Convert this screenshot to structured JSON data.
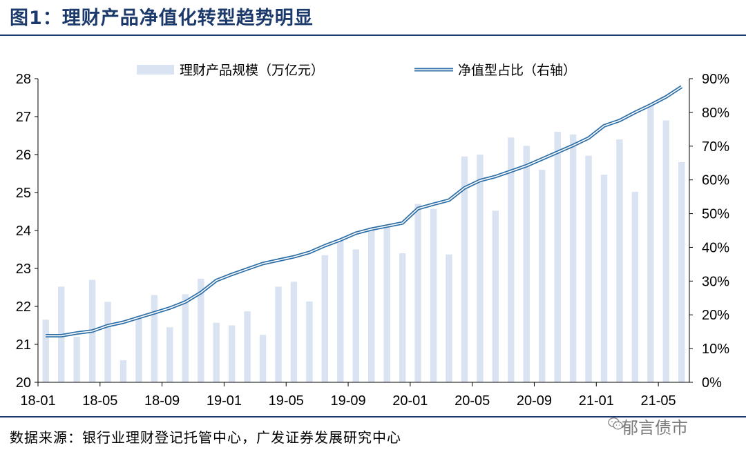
{
  "figure": {
    "title": "图1：理财产品净值化转型趋势明显",
    "source": "数据来源：银行业理财登记托管中心，广发证券发展研究中心",
    "watermark": "郁言债市"
  },
  "chart_data": {
    "type": "bar+line",
    "legend": [
      "理财产品规模（万亿元）",
      "净值型占比（右轴）"
    ],
    "legend_position": "top-center",
    "x": [
      "18-01",
      "18-02",
      "18-03",
      "18-04",
      "18-05",
      "18-06",
      "18-07",
      "18-08",
      "18-09",
      "18-10",
      "18-11",
      "18-12",
      "19-01",
      "19-02",
      "19-03",
      "19-04",
      "19-05",
      "19-06",
      "19-07",
      "19-08",
      "19-09",
      "19-10",
      "19-11",
      "19-12",
      "20-01",
      "20-02",
      "20-03",
      "20-04",
      "20-05",
      "20-06",
      "20-07",
      "20-08",
      "20-09",
      "20-10",
      "20-11",
      "20-12",
      "21-01",
      "21-02",
      "21-03",
      "21-04",
      "21-05",
      "21-06"
    ],
    "x_tick_labels": [
      "18-01",
      "18-05",
      "18-09",
      "19-01",
      "19-05",
      "19-09",
      "20-01",
      "20-05",
      "20-09",
      "21-01",
      "21-05"
    ],
    "series": [
      {
        "name": "理财产品规模（万亿元）",
        "type": "bar",
        "axis": "left",
        "color": "#dae3f1",
        "values": [
          21.65,
          22.52,
          21.2,
          22.7,
          22.12,
          20.58,
          21.75,
          22.3,
          21.45,
          22.32,
          22.73,
          21.57,
          21.5,
          21.87,
          21.25,
          22.52,
          22.65,
          22.13,
          23.35,
          23.78,
          23.5,
          24.08,
          24.1,
          23.4,
          24.7,
          24.57,
          23.37,
          25.95,
          26.0,
          24.52,
          26.45,
          26.23,
          25.6,
          26.6,
          26.53,
          25.97,
          25.47,
          26.4,
          25.02,
          27.3,
          26.9,
          25.8
        ]
      },
      {
        "name": "净值型占比（右轴）",
        "type": "line",
        "axis": "right",
        "color": "#2e6fa7",
        "values": [
          13.8,
          13.8,
          14.6,
          15.2,
          16.8,
          17.8,
          19.2,
          20.6,
          22.0,
          23.8,
          26.6,
          30.2,
          32.0,
          33.6,
          35.2,
          36.2,
          37.2,
          38.5,
          40.5,
          42.2,
          44.2,
          45.4,
          46.3,
          47.2,
          51.5,
          52.8,
          54.0,
          57.6,
          59.8,
          61.0,
          62.6,
          64.2,
          66.2,
          68.2,
          70.2,
          72.4,
          76.0,
          77.6,
          80.0,
          82.2,
          84.6,
          87.6
        ]
      }
    ],
    "y_left": {
      "min": 20,
      "max": 28,
      "ticks": [
        20,
        21,
        22,
        23,
        24,
        25,
        26,
        27,
        28
      ]
    },
    "y_right": {
      "min": 0,
      "max": 90,
      "ticks": [
        "0%",
        "10%",
        "20%",
        "30%",
        "40%",
        "50%",
        "60%",
        "70%",
        "80%",
        "90%"
      ]
    },
    "grid": false
  }
}
